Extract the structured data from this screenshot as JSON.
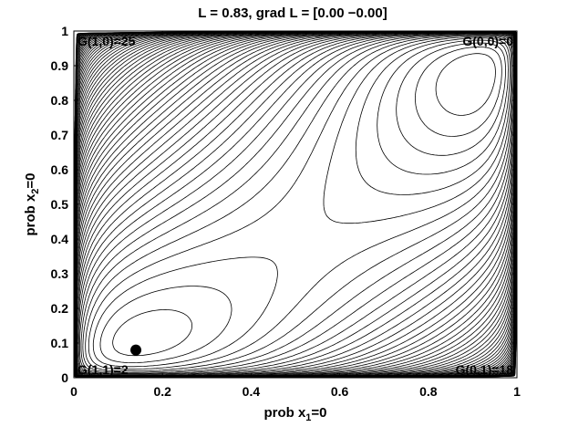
{
  "chart_data": {
    "type": "contour",
    "title": "L = 0.83,  grad L = [0.00 −0.00]",
    "xlabel": {
      "main": "prob x",
      "sub": "1",
      "suffix": "=0"
    },
    "ylabel": {
      "main": "prob x",
      "sub": "2",
      "suffix": "=0"
    },
    "xlim": [
      0,
      1
    ],
    "ylim": [
      0,
      1
    ],
    "xticks": [
      "0",
      "0.2",
      "0.4",
      "0.6",
      "0.8",
      "1"
    ],
    "xtick_values": [
      0,
      0.2,
      0.4,
      0.6,
      0.8,
      1
    ],
    "yticks": [
      "0",
      "0.1",
      "0.2",
      "0.3",
      "0.4",
      "0.5",
      "0.6",
      "0.7",
      "0.8",
      "0.9",
      "1"
    ],
    "ytick_values": [
      0,
      0.1,
      0.2,
      0.3,
      0.4,
      0.5,
      0.6,
      0.7,
      0.8,
      0.9,
      1
    ],
    "corner_labels": [
      {
        "text": "G(1,0)=25",
        "corner": "top-left"
      },
      {
        "text": "G(0,0)=0",
        "corner": "top-right"
      },
      {
        "text": "G(1,1)=2",
        "corner": "bottom-left"
      },
      {
        "text": "G(0,1)=18",
        "corner": "bottom-right"
      }
    ],
    "corner_values": {
      "G00": 0,
      "G01": 18,
      "G10": 25,
      "G11": 2
    },
    "marker": {
      "x": 0.14,
      "y": 0.08
    },
    "contour_color": "#000000",
    "grid": false
  }
}
